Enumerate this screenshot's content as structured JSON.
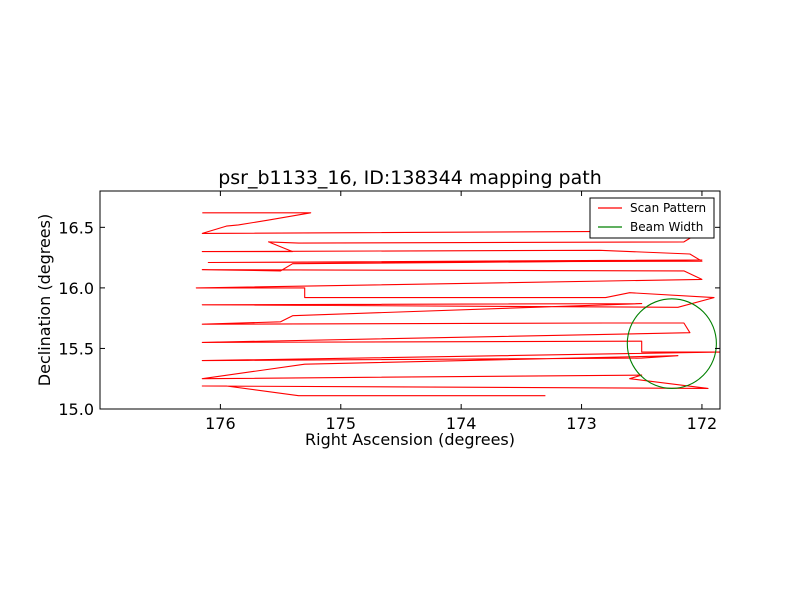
{
  "chart_data": {
    "type": "line",
    "title": "psr_b1133_16, ID:138344 mapping path",
    "xlabel": "Right Ascension (degrees)",
    "ylabel": "Declination (degrees)",
    "xlim": [
      177.0,
      171.85
    ],
    "ylim": [
      15.0,
      16.8
    ],
    "x_ticks": [
      176,
      175,
      174,
      173,
      172
    ],
    "x_tick_labels": [
      "176",
      "175",
      "174",
      "173",
      "172"
    ],
    "y_ticks": [
      15.0,
      15.5,
      16.0,
      16.5
    ],
    "y_tick_labels": [
      "15.0",
      "15.5",
      "16.0",
      "16.5"
    ],
    "grid": false,
    "legend_position": "top-right",
    "series": [
      {
        "name": "Scan Pattern",
        "color": "#ff0000",
        "x": [
          176.15,
          175.25,
          175.6,
          175.85,
          175.95,
          176.15,
          172.0,
          172.15,
          175.35,
          175.6,
          175.4,
          176.15,
          172.85,
          172.1,
          172.0,
          176.1,
          172.0,
          172.7,
          175.4,
          175.5,
          176.15,
          172.15,
          172.0,
          176.2,
          175.3,
          175.3,
          172.8,
          172.6,
          171.9,
          172.2,
          176.15,
          172.5,
          175.4,
          175.5,
          176.15,
          172.8,
          172.15,
          172.1,
          176.15,
          172.5,
          172.5,
          171.85,
          176.15,
          172.5,
          172.2,
          175.3,
          176.15,
          172.5,
          172.6,
          171.95,
          176.15,
          175.95,
          175.35,
          175.3,
          173.3
        ],
        "y": [
          16.62,
          16.62,
          16.56,
          16.52,
          16.51,
          16.45,
          16.47,
          16.38,
          16.37,
          16.38,
          16.3,
          16.3,
          16.31,
          16.28,
          16.22,
          16.21,
          16.23,
          16.22,
          16.2,
          16.14,
          16.15,
          16.14,
          16.07,
          16.0,
          16.0,
          15.92,
          15.92,
          15.96,
          15.92,
          15.84,
          15.86,
          15.87,
          15.77,
          15.72,
          15.7,
          15.71,
          15.71,
          15.63,
          15.55,
          15.56,
          15.47,
          15.47,
          15.4,
          15.42,
          15.44,
          15.37,
          15.25,
          15.28,
          15.25,
          15.17,
          15.19,
          15.19,
          15.11,
          15.11,
          15.11
        ]
      },
      {
        "name": "Beam Width",
        "color": "#008000",
        "center": [
          172.25,
          15.54
        ],
        "radius_deg": 0.37
      }
    ]
  },
  "legend": {
    "scan_label": "Scan Pattern",
    "beam_label": "Beam Width",
    "scan_color": "#ff0000",
    "beam_color": "#008000"
  }
}
